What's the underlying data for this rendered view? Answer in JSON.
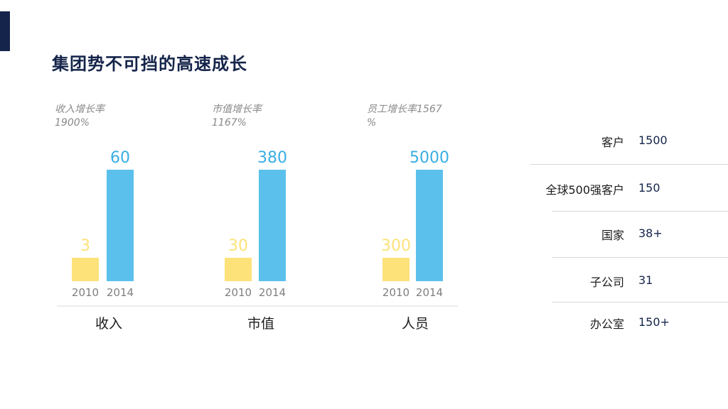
{
  "title": "集团势不可挡的高速成长",
  "colors": {
    "accent": "#15244a",
    "bar_2010": "#fde27a",
    "bar_2014": "#5bc0eb",
    "label_2010": "#fde27a",
    "label_2014": "#3aaee3"
  },
  "chart_data": [
    {
      "type": "bar",
      "category_label": "收入",
      "growth_text": [
        "收入增长率",
        "1900%"
      ],
      "categories": [
        "2010",
        "2014"
      ],
      "values": [
        3,
        60
      ]
    },
    {
      "type": "bar",
      "category_label": "市值",
      "growth_text": [
        "市值增长率",
        "1167%"
      ],
      "categories": [
        "2010",
        "2014"
      ],
      "values": [
        30,
        380
      ]
    },
    {
      "type": "bar",
      "category_label": "人员",
      "growth_text": [
        "员工增长率1567",
        "%"
      ],
      "categories": [
        "2010",
        "2014"
      ],
      "values": [
        300,
        5000
      ]
    }
  ],
  "stats": [
    {
      "label": "客户",
      "value": "1500"
    },
    {
      "label": "全球500强客户",
      "value": "150"
    },
    {
      "label": "国家",
      "value": "38+"
    },
    {
      "label": "子公司",
      "value": "31"
    },
    {
      "label": "办公室",
      "value": "150+"
    }
  ]
}
